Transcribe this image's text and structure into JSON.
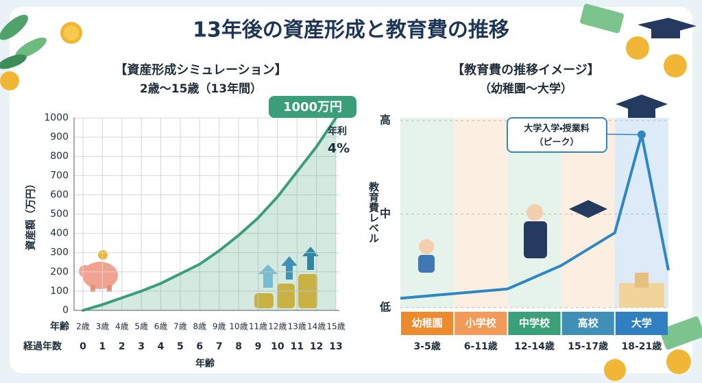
{
  "title": "13年後の資産形成と教育費の推移",
  "chart_data": [
    {
      "type": "area",
      "title": "【資産形成シミュレーション】",
      "subtitle": "2歳〜15歳（13年間）",
      "y_label": "資産額（万円）",
      "x_label": "年齢",
      "x_row_labels": [
        "年齢",
        "経過年数"
      ],
      "x": [
        0,
        1,
        2,
        3,
        4,
        5,
        6,
        7,
        8,
        9,
        10,
        11,
        12,
        13
      ],
      "age_labels": [
        "2歳",
        "3歳",
        "4歳",
        "5歳",
        "6歳",
        "7歳",
        "8歳",
        "9歳",
        "10歳",
        "11歳",
        "12歳",
        "13歳",
        "14歳",
        "15歳"
      ],
      "values": [
        0,
        30,
        65,
        100,
        140,
        190,
        240,
        310,
        390,
        480,
        590,
        720,
        850,
        1000
      ],
      "color": "#3a9f78",
      "xlim": [
        0,
        13
      ],
      "xticks": [
        0,
        1,
        2,
        3,
        4,
        5,
        6,
        7,
        8,
        9,
        10,
        11,
        12,
        13
      ],
      "ylim": [
        0,
        1000
      ],
      "yticks": [
        0,
        100,
        200,
        300,
        400,
        500,
        600,
        700,
        800,
        900,
        1000
      ],
      "grid": true,
      "end_label": "1000万円",
      "rate_label": "年利",
      "rate": "4%"
    },
    {
      "type": "line",
      "title": "【教育費の推移イメージ】",
      "subtitle": "（幼稚園〜大学）",
      "y_label": "教育費レベル",
      "categories": [
        "幼稚園",
        "小学校",
        "中学校",
        "高校",
        "大学"
      ],
      "category_ages": [
        "3-5歳",
        "6-11歳",
        "12-14歳",
        "15-17歳",
        "18-21歳"
      ],
      "band_colors": [
        "#e6f3ea",
        "#fcefe2",
        "#e6f3ea",
        "#fcefe2",
        "#dcebf7"
      ],
      "label_colors": [
        "#ec8a2e",
        "#f29a58",
        "#3aa07a",
        "#3f8fb8",
        "#2f7fc1"
      ],
      "x": [
        0,
        2,
        3,
        4,
        4.5,
        5
      ],
      "values": [
        0.1,
        0.2,
        0.45,
        0.8,
        1.85,
        0.4
      ],
      "color": "#2f86c4",
      "xlim": [
        0,
        5
      ],
      "ylim": [
        0,
        2
      ],
      "yticks": [
        {
          "value": 0,
          "label": "低"
        },
        {
          "value": 1,
          "label": "中"
        },
        {
          "value": 2,
          "label": "高"
        }
      ],
      "annotation": "大学入学・授業料",
      "annotation_sub": "（ピーク）"
    }
  ]
}
